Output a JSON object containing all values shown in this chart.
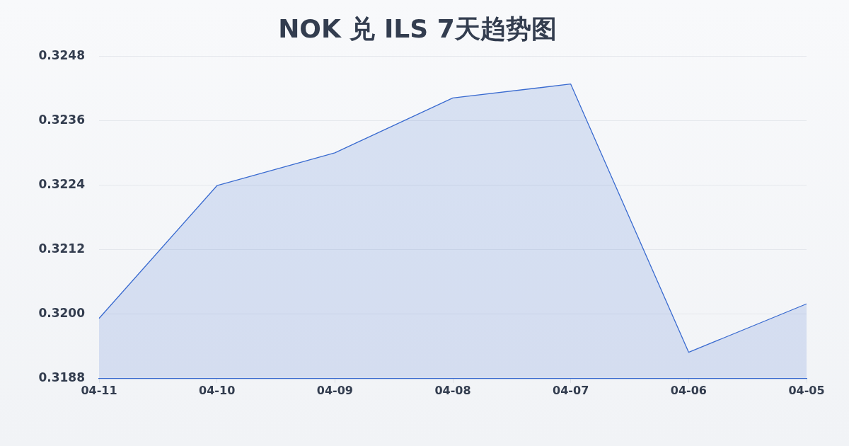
{
  "chart_data": {
    "type": "area",
    "title": "NOK 兑 ILS 7天趋势图",
    "categories": [
      "04-11",
      "04-10",
      "04-09",
      "04-08",
      "04-07",
      "04-06",
      "04-05"
    ],
    "series": [
      {
        "color": "#3a6bd0",
        "values": [
          0.31992,
          0.32239,
          0.323,
          0.32402,
          0.32428,
          0.31929,
          0.32019
        ]
      }
    ],
    "ylim": [
      0.3188,
      0.3248
    ],
    "yticks": [
      0.3188,
      {
        "value": 0.32,
        "label": "0.3200"
      },
      0.3212,
      0.3224,
      0.3236,
      0.3248
    ],
    "grid": "y",
    "marker": "none"
  }
}
